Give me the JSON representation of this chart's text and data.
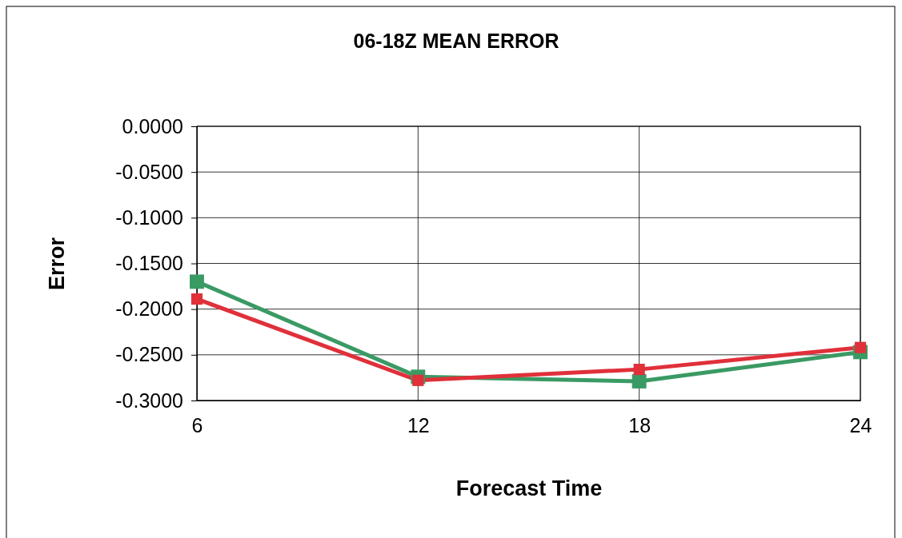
{
  "chart_data": {
    "type": "line",
    "title": "06-18Z MEAN ERROR",
    "xlabel": "Forecast Time",
    "ylabel": "Error",
    "x": [
      6,
      12,
      18,
      24
    ],
    "series": [
      {
        "color": "#3a9a64",
        "values": [
          -0.17,
          -0.274,
          -0.279,
          -0.247
        ]
      },
      {
        "color": "#e0303a",
        "values": [
          -0.189,
          -0.278,
          -0.266,
          -0.242
        ]
      }
    ],
    "xlim": [
      6,
      24
    ],
    "xticks": [
      6,
      12,
      18,
      24
    ],
    "ylim": [
      -0.3,
      0
    ],
    "yticks": [
      {
        "value": 0,
        "label": "0.0000"
      },
      {
        "value": -0.05,
        "label": "-0.0500"
      },
      {
        "value": -0.1,
        "label": "-0.1000"
      },
      {
        "value": -0.15,
        "label": "-0.1500"
      },
      {
        "value": -0.2,
        "label": "-0.2000"
      },
      {
        "value": -0.25,
        "label": "-0.2500"
      },
      {
        "value": -0.3,
        "label": "-0.3000"
      }
    ],
    "grid": true,
    "marker": "square",
    "line_style": "solid"
  }
}
